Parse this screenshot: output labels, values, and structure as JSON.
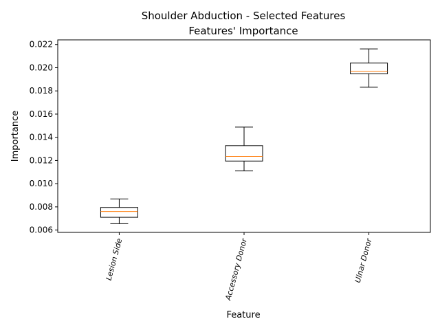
{
  "chart_data": {
    "type": "box",
    "title": "Shoulder Abduction - Selected Features",
    "subtitle": "Features' Importance",
    "xlabel": "Feature",
    "ylabel": "Importance",
    "ylim": [
      0.0058,
      0.0224
    ],
    "yticks": [
      "0.006",
      "0.008",
      "0.010",
      "0.012",
      "0.014",
      "0.016",
      "0.018",
      "0.020",
      "0.022"
    ],
    "grid": false,
    "categories": [
      "Lesion Side",
      "Accessory Donor",
      "Ulnar Donor"
    ],
    "boxes": [
      {
        "name": "Lesion Side",
        "whisker_low": 0.00655,
        "q1": 0.0071,
        "median": 0.0076,
        "q3": 0.00795,
        "whisker_high": 0.00868
      },
      {
        "name": "Accessory Donor",
        "whisker_low": 0.0111,
        "q1": 0.01195,
        "median": 0.01235,
        "q3": 0.01328,
        "whisker_high": 0.01488
      },
      {
        "name": "Ulnar Donor",
        "whisker_low": 0.01832,
        "q1": 0.01948,
        "median": 0.0197,
        "q3": 0.0204,
        "whisker_high": 0.02162
      }
    ],
    "colors": {
      "box": "#000000",
      "median": "#ff7f0e"
    }
  }
}
